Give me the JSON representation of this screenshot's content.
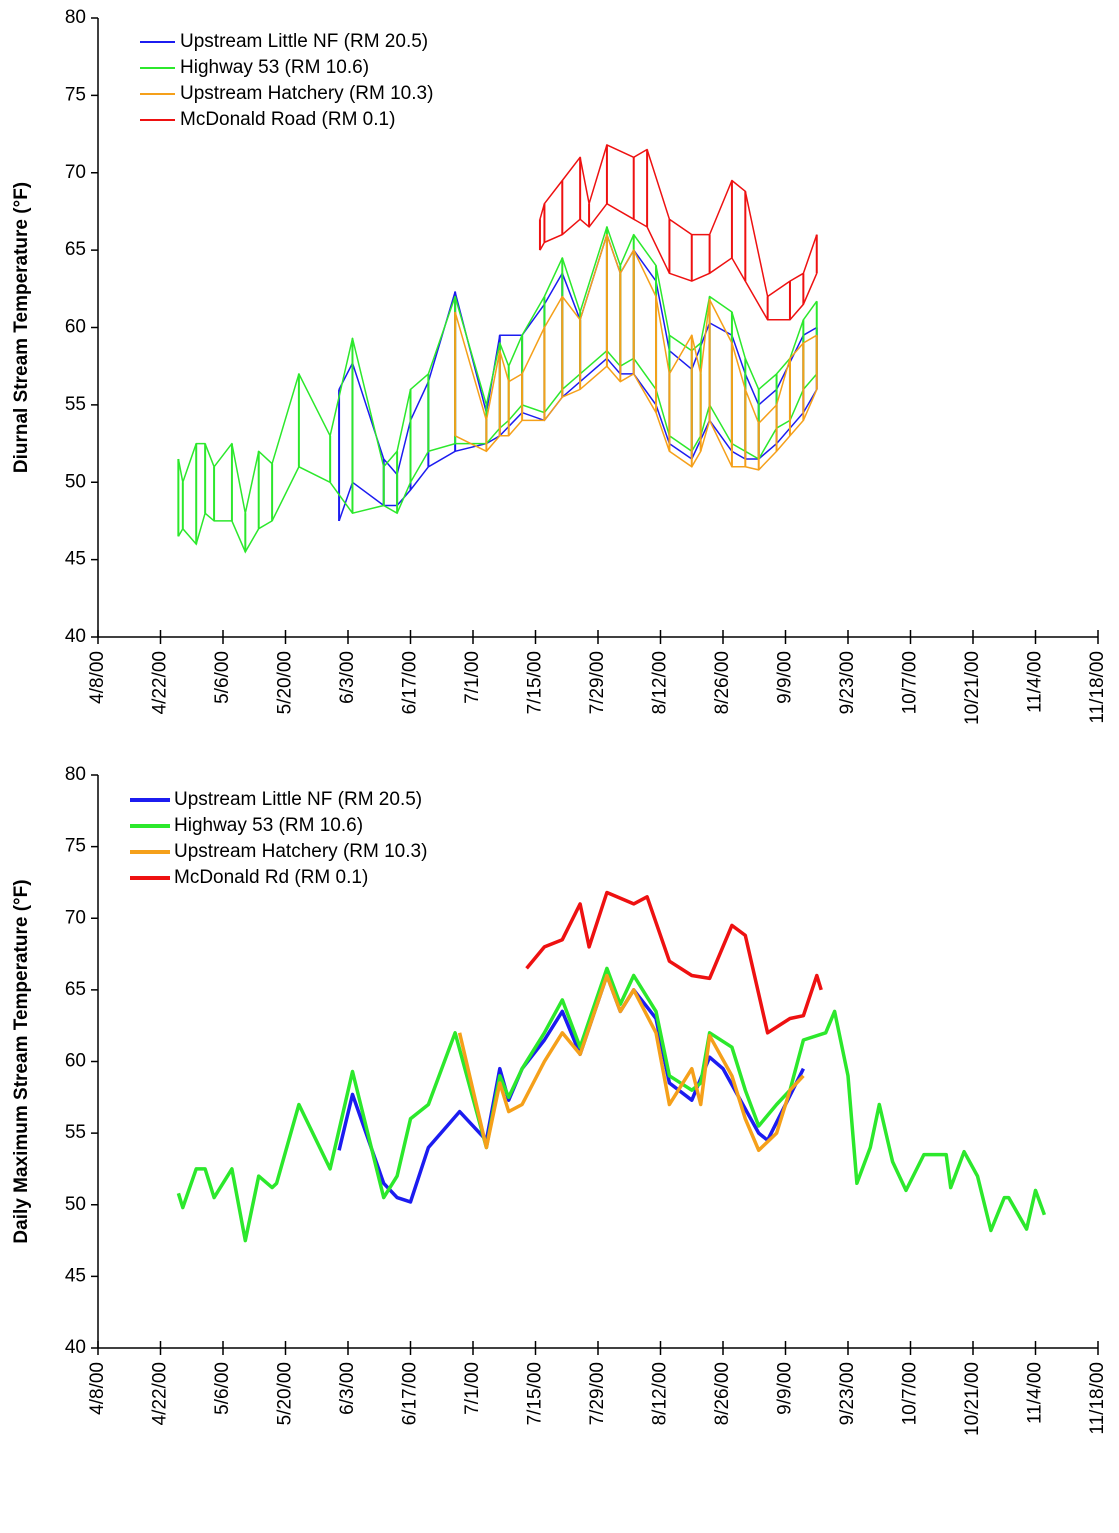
{
  "chart_data": [
    {
      "type": "line",
      "y_label": "Diurnal Stream Temperature (°F)",
      "xlim": [
        "4/8/00",
        "11/18/00"
      ],
      "xticks": [
        "4/8/00",
        "4/22/00",
        "5/6/00",
        "5/20/00",
        "6/3/00",
        "6/17/00",
        "7/1/00",
        "7/15/00",
        "7/29/00",
        "8/12/00",
        "8/26/00",
        "9/9/00",
        "9/23/00",
        "10/7/00",
        "10/21/00",
        "11/4/00",
        "11/18/00"
      ],
      "ylim": [
        40,
        80
      ],
      "yticks": [
        40,
        45,
        50,
        55,
        60,
        65,
        70,
        75,
        80
      ],
      "legend": "upper left",
      "series": [
        {
          "name": "Upstream Little NF (RM 20.5)",
          "color": "#1c1cf0",
          "x": [
            "6/1/00",
            "6/4/00",
            "6/11/00",
            "6/14/00",
            "6/17/00",
            "6/21/00",
            "6/27/00",
            "7/4/00",
            "7/7/00",
            "7/12/00",
            "7/17/00",
            "7/21/00",
            "7/25/00",
            "7/31/00",
            "8/3/00",
            "8/6/00",
            "8/11/00",
            "8/14/00",
            "8/19/00",
            "8/23/00",
            "8/28/00",
            "8/31/00",
            "9/3/00",
            "9/7/00",
            "9/13/00",
            "9/16/00"
          ],
          "values": [
            56,
            57.7,
            51.5,
            50.5,
            54,
            56.5,
            62.3,
            54.5,
            59.5,
            59.5,
            61.5,
            63.5,
            60.5,
            66,
            63.5,
            65,
            63,
            58.5,
            57.3,
            60.3,
            59.5,
            57,
            55,
            56,
            59.5,
            60
          ],
          "lows": [
            47.5,
            50,
            48.5,
            48.5,
            49.5,
            51,
            52,
            52.5,
            53,
            54.5,
            54,
            55.5,
            56.5,
            58,
            57,
            57,
            55,
            52.5,
            51.5,
            54,
            52,
            51.5,
            51.5,
            52.5,
            54.5,
            56
          ]
        },
        {
          "name": "Highway 53 (RM 10.6)",
          "color": "#2ce82c",
          "x": [
            "4/26/00",
            "4/27/00",
            "4/30/00",
            "5/2/00",
            "5/4/00",
            "5/8/00",
            "5/11/00",
            "5/14/00",
            "5/17/00",
            "5/23/00",
            "5/30/00",
            "6/4/00",
            "6/11/00",
            "6/14/00",
            "6/17/00",
            "6/21/00",
            "6/27/00",
            "7/4/00",
            "7/7/00",
            "7/9/00",
            "7/12/00",
            "7/17/00",
            "7/21/00",
            "7/25/00",
            "7/31/00",
            "8/3/00",
            "8/6/00",
            "8/11/00",
            "8/14/00",
            "8/19/00",
            "8/21/00",
            "8/23/00",
            "8/28/00",
            "8/31/00",
            "9/3/00",
            "9/7/00",
            "9/10/00",
            "9/13/00",
            "9/16/00"
          ],
          "values": [
            51.5,
            50,
            52.5,
            52.5,
            51,
            52.5,
            48,
            52,
            51.2,
            57,
            53,
            59.3,
            51,
            52,
            56,
            57,
            62,
            55,
            59,
            57.5,
            59.5,
            62,
            64.5,
            61,
            66.5,
            64,
            66,
            64,
            59.5,
            58.5,
            59,
            62,
            61,
            58,
            56,
            57,
            58,
            60.5,
            61.7
          ],
          "lows": [
            46.5,
            47,
            46,
            48,
            47.5,
            47.5,
            45.5,
            47,
            47.5,
            51,
            50,
            48,
            48.5,
            48,
            50,
            52,
            52.5,
            52.5,
            53.5,
            54,
            55,
            54.5,
            56,
            57,
            58.5,
            57.5,
            58,
            56,
            53,
            52,
            53,
            55,
            52.5,
            52,
            51.5,
            53.5,
            54,
            56,
            57
          ]
        },
        {
          "name": "Upstream Hatchery (RM 10.3)",
          "color": "#f5a01a",
          "x": [
            "6/27/00",
            "7/4/00",
            "7/7/00",
            "7/9/00",
            "7/12/00",
            "7/17/00",
            "7/21/00",
            "7/25/00",
            "7/31/00",
            "8/3/00",
            "8/6/00",
            "8/11/00",
            "8/14/00",
            "8/19/00",
            "8/21/00",
            "8/23/00",
            "8/28/00",
            "8/31/00",
            "9/3/00",
            "9/7/00",
            "9/10/00",
            "9/13/00",
            "9/16/00"
          ],
          "values": [
            61,
            54,
            58.5,
            56.5,
            57,
            60,
            62,
            60.5,
            66,
            63.5,
            65,
            62,
            57,
            59.5,
            57,
            61.8,
            59,
            56,
            53.8,
            55,
            58,
            59,
            59.5
          ],
          "lows": [
            53,
            52,
            53,
            53,
            54,
            54,
            55.5,
            56,
            57.5,
            56.5,
            57,
            54.5,
            52,
            51,
            52,
            54,
            51,
            51,
            50.8,
            52,
            53,
            54,
            56
          ]
        },
        {
          "name": "McDonald Road (RM 0.1)",
          "color": "#ee1111",
          "x": [
            "7/16/00",
            "7/17/00",
            "7/21/00",
            "7/25/00",
            "7/27/00",
            "7/31/00",
            "8/6/00",
            "8/9/00",
            "8/14/00",
            "8/19/00",
            "8/23/00",
            "8/28/00",
            "8/31/00",
            "9/5/00",
            "9/10/00",
            "9/13/00",
            "9/16/00"
          ],
          "values": [
            67,
            68,
            69.5,
            71,
            68,
            71.8,
            71,
            71.5,
            67,
            66,
            66,
            69.5,
            68.8,
            62,
            63,
            63.5,
            66
          ],
          "lows": [
            65,
            65.5,
            66,
            67,
            66.5,
            68,
            67,
            66.5,
            63.5,
            63,
            63.5,
            64.5,
            63,
            60.5,
            60.5,
            61.5,
            63.5
          ]
        }
      ]
    },
    {
      "type": "line",
      "y_label": "Daily Maximum Stream Temperature (°F)",
      "xlim": [
        "4/8/00",
        "11/18/00"
      ],
      "xticks": [
        "4/8/00",
        "4/22/00",
        "5/6/00",
        "5/20/00",
        "6/3/00",
        "6/17/00",
        "7/1/00",
        "7/15/00",
        "7/29/00",
        "8/12/00",
        "8/26/00",
        "9/9/00",
        "9/23/00",
        "10/7/00",
        "10/21/00",
        "11/4/00",
        "11/18/00"
      ],
      "ylim": [
        40,
        80
      ],
      "yticks": [
        40,
        45,
        50,
        55,
        60,
        65,
        70,
        75,
        80
      ],
      "legend": "upper left",
      "series": [
        {
          "name": "Upstream Little NF (RM 20.5)",
          "color": "#1c1cf0",
          "x": [
            "6/1/00",
            "6/4/00",
            "6/11/00",
            "6/14/00",
            "6/17/00",
            "6/21/00",
            "6/28/00",
            "7/4/00",
            "7/7/00",
            "7/9/00",
            "7/12/00",
            "7/17/00",
            "7/21/00",
            "7/25/00",
            "7/31/00",
            "8/3/00",
            "8/6/00",
            "8/11/00",
            "8/14/00",
            "8/19/00",
            "8/23/00",
            "8/26/00",
            "9/3/00",
            "9/5/00",
            "9/13/00"
          ],
          "values": [
            53.8,
            57.7,
            51.5,
            50.5,
            50.2,
            54,
            56.5,
            54.5,
            59.5,
            57.3,
            59.5,
            61.5,
            63.5,
            60.5,
            66,
            63.5,
            65,
            63,
            58.5,
            57.3,
            60.3,
            59.5,
            55,
            54.5,
            59.5
          ]
        },
        {
          "name": "Highway 53 (RM 10.6)",
          "color": "#2ce82c",
          "x": [
            "4/26/00",
            "4/27/00",
            "4/30/00",
            "5/2/00",
            "5/4/00",
            "5/8/00",
            "5/11/00",
            "5/14/00",
            "5/17/00",
            "5/18/00",
            "5/23/00",
            "5/30/00",
            "6/4/00",
            "6/11/00",
            "6/14/00",
            "6/17/00",
            "6/21/00",
            "6/27/00",
            "7/4/00",
            "7/7/00",
            "7/9/00",
            "7/12/00",
            "7/17/00",
            "7/21/00",
            "7/25/00",
            "7/31/00",
            "8/3/00",
            "8/6/00",
            "8/11/00",
            "8/14/00",
            "8/19/00",
            "8/21/00",
            "8/23/00",
            "8/28/00",
            "8/31/00",
            "9/3/00",
            "9/7/00",
            "9/10/00",
            "9/13/00",
            "9/18/00",
            "9/20/00",
            "9/23/00",
            "9/25/00",
            "9/28/00",
            "9/30/00",
            "10/3/00",
            "10/6/00",
            "10/10/00",
            "10/15/00",
            "10/16/00",
            "10/19/00",
            "10/22/00",
            "10/25/00",
            "10/28/00",
            "10/29/00",
            "11/2/00",
            "11/4/00",
            "11/6/00"
          ],
          "values": [
            50.8,
            49.8,
            52.5,
            52.5,
            50.5,
            52.5,
            47.5,
            52,
            51.2,
            51.5,
            57,
            52.5,
            59.3,
            50.5,
            52,
            56,
            57,
            62,
            54,
            59,
            57.5,
            59.5,
            62,
            64.3,
            61,
            66.5,
            64,
            66,
            63.5,
            59,
            58,
            58.5,
            62,
            61,
            58,
            55.5,
            57,
            58,
            61.5,
            62,
            63.5,
            59,
            51.5,
            54,
            57,
            53,
            51,
            53.5,
            53.5,
            51.2,
            53.7,
            52,
            48.2,
            50.5,
            50.5,
            48.3,
            51,
            49.3
          ]
        },
        {
          "name": "Upstream Hatchery (RM 10.3)",
          "color": "#f5a01a",
          "x": [
            "6/28/00",
            "7/4/00",
            "7/7/00",
            "7/9/00",
            "7/12/00",
            "7/17/00",
            "7/21/00",
            "7/25/00",
            "7/31/00",
            "8/3/00",
            "8/6/00",
            "8/11/00",
            "8/14/00",
            "8/19/00",
            "8/21/00",
            "8/23/00",
            "8/28/00",
            "8/31/00",
            "9/3/00",
            "9/7/00",
            "9/10/00",
            "9/13/00"
          ],
          "values": [
            62,
            54,
            58.5,
            56.5,
            57,
            60,
            62,
            60.5,
            66,
            63.5,
            65,
            62,
            57,
            59.5,
            57,
            61.8,
            59,
            56,
            53.8,
            55,
            58,
            59
          ]
        },
        {
          "name": "McDonald Rd (RM 0.1)",
          "color": "#ee1111",
          "x": [
            "7/13/00",
            "7/17/00",
            "7/21/00",
            "7/25/00",
            "7/27/00",
            "7/31/00",
            "8/6/00",
            "8/9/00",
            "8/14/00",
            "8/19/00",
            "8/23/00",
            "8/28/00",
            "8/31/00",
            "9/5/00",
            "9/10/00",
            "9/13/00",
            "9/16/00",
            "9/17/00"
          ],
          "values": [
            66.5,
            68,
            68.5,
            71,
            68,
            71.8,
            71,
            71.5,
            67,
            66,
            65.8,
            69.5,
            68.8,
            62,
            63,
            63.2,
            66,
            65
          ]
        }
      ]
    }
  ]
}
